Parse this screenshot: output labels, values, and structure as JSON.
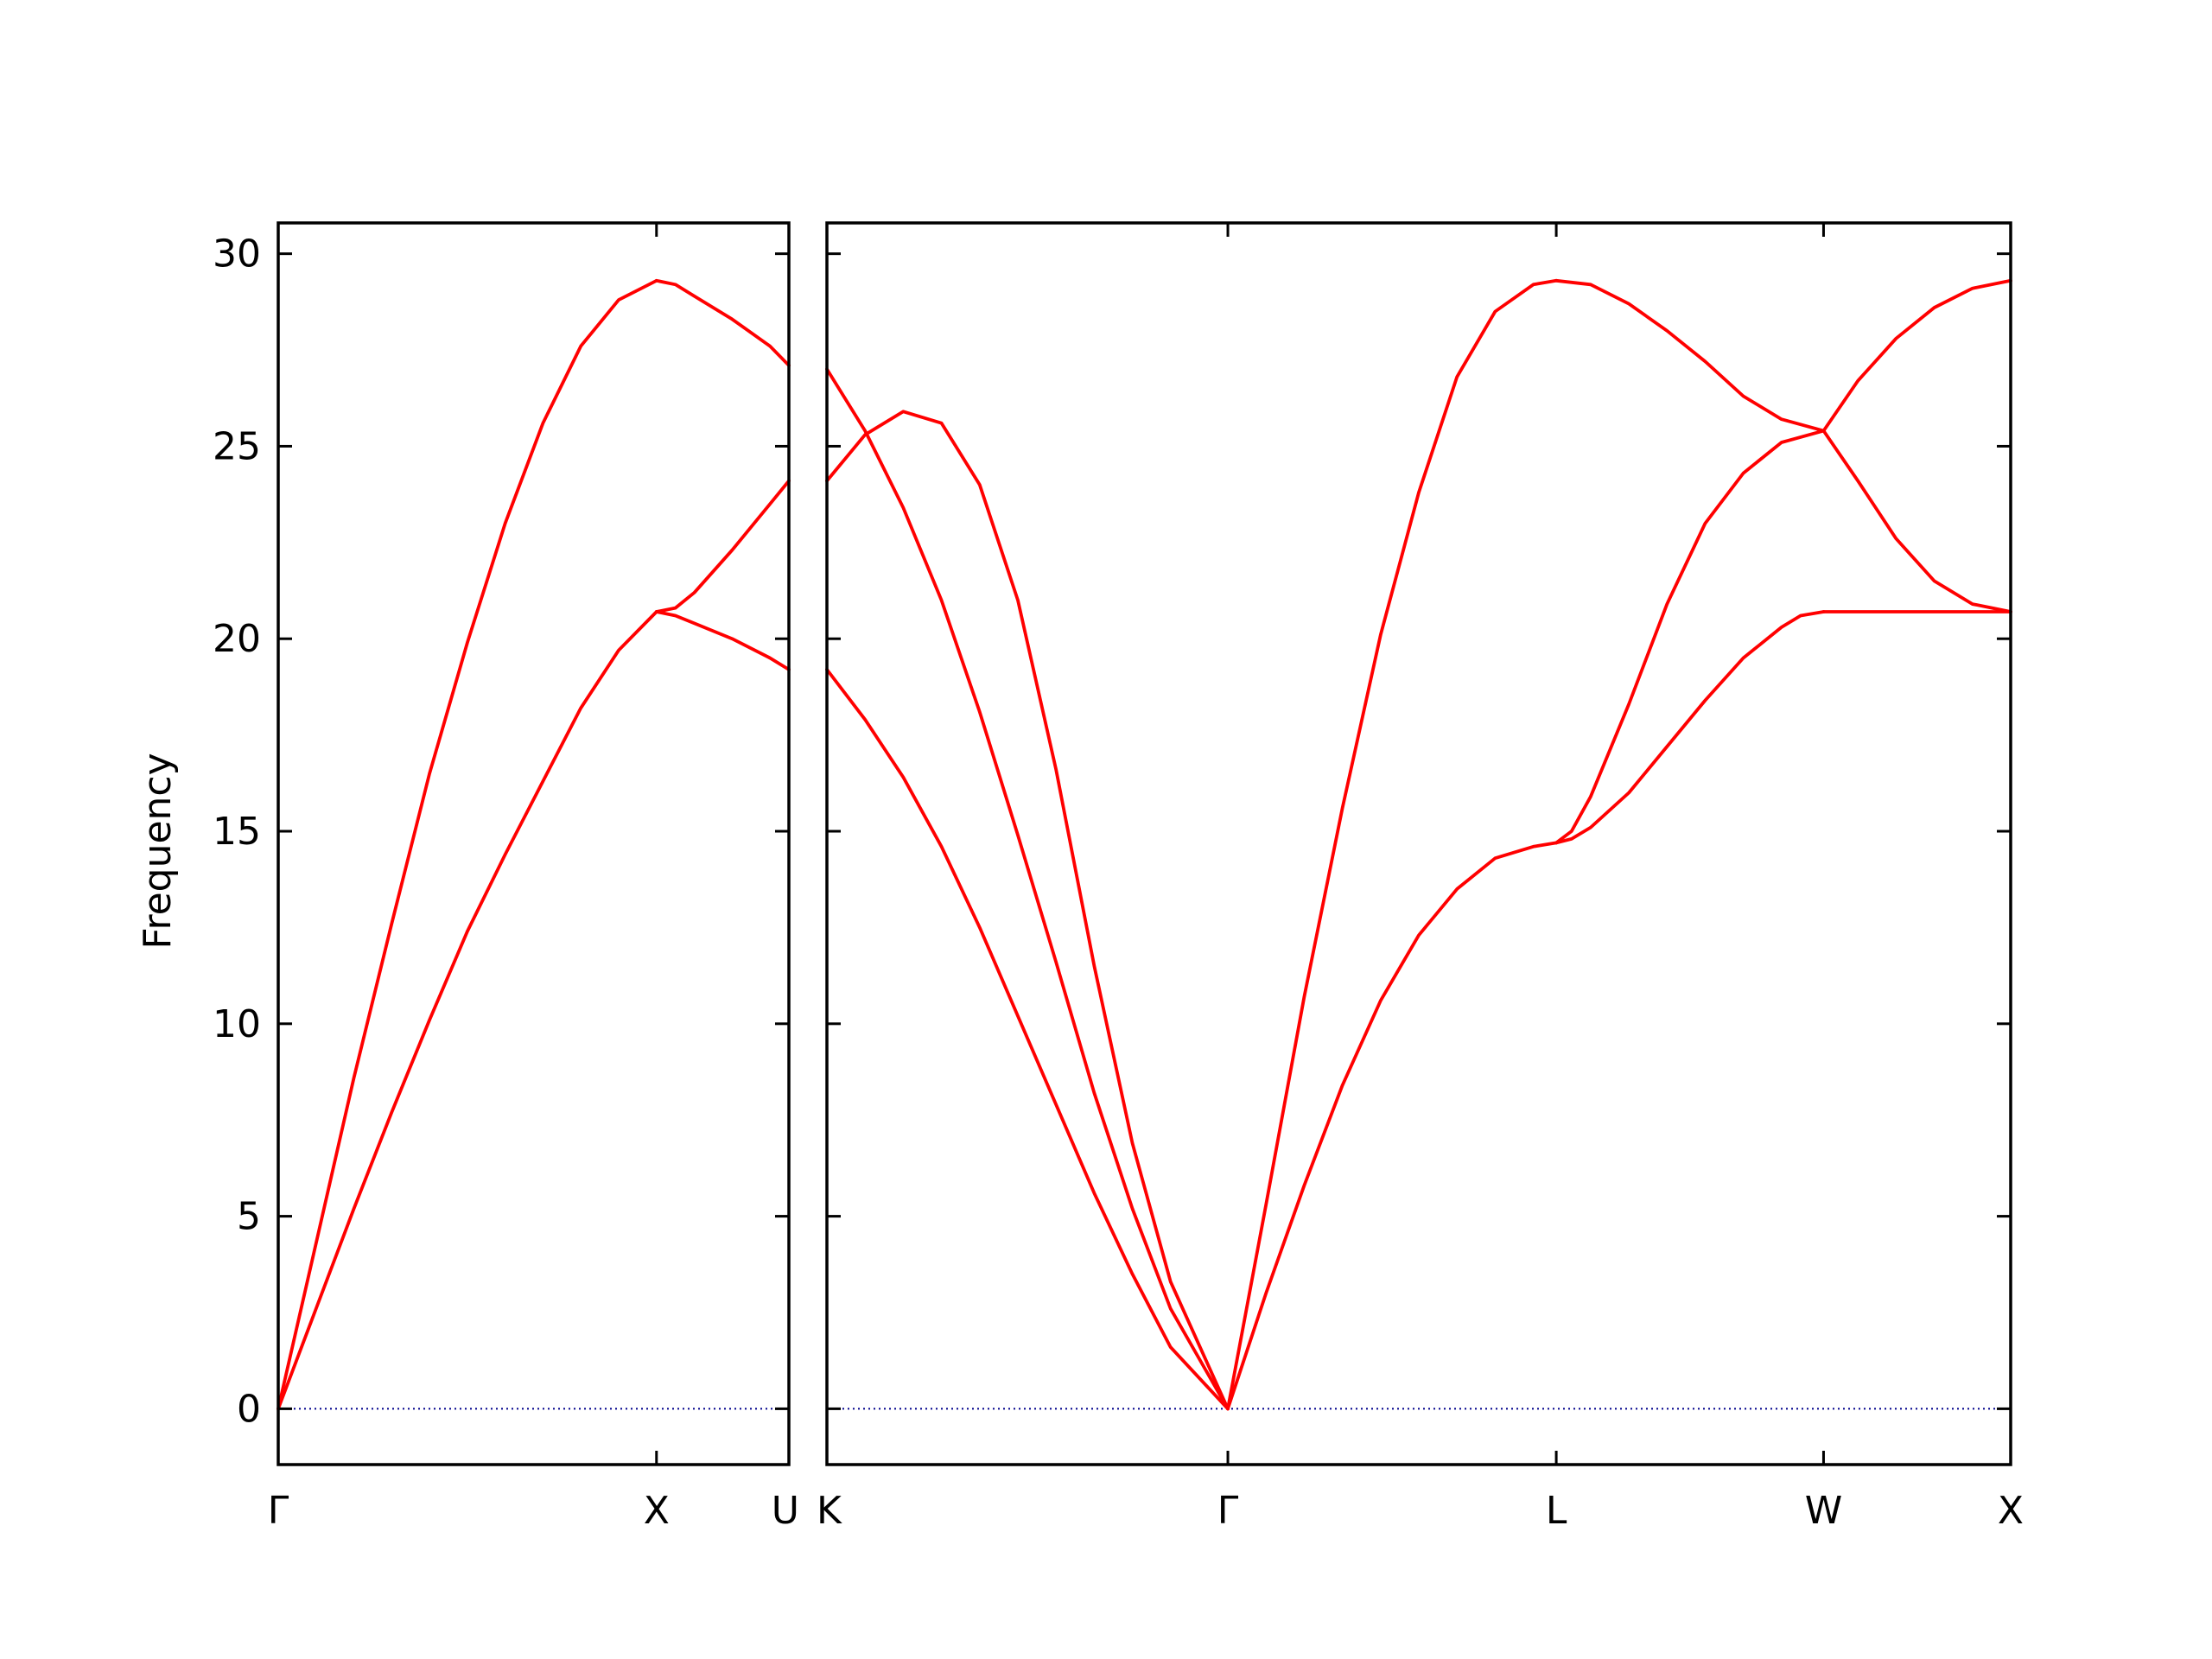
{
  "chart_data": {
    "type": "line",
    "ylabel": "Frequency",
    "ylim": [
      -1.45,
      30.8
    ],
    "yticks": [
      0,
      5,
      10,
      15,
      20,
      25,
      30
    ],
    "band_color": "#ff0000",
    "zero_line_color": "#00008b",
    "panels": [
      {
        "xlim": [
          0,
          1.35
        ],
        "ticks": [
          {
            "x": 0,
            "label": "Γ"
          },
          {
            "x": 1.0,
            "label": "X"
          },
          {
            "x": 1.35,
            "label": "U"
          }
        ],
        "series": [
          {
            "points": [
              [
                0,
                0
              ],
              [
                0.1,
                2.6
              ],
              [
                0.2,
                5.2
              ],
              [
                0.3,
                7.7
              ],
              [
                0.4,
                10.1
              ],
              [
                0.5,
                12.4
              ],
              [
                0.6,
                14.4
              ],
              [
                0.7,
                16.3
              ],
              [
                0.8,
                18.2
              ],
              [
                0.9,
                19.7
              ],
              [
                1.0,
                20.7
              ]
            ]
          },
          {
            "points": [
              [
                0,
                0
              ],
              [
                0.1,
                4.3
              ],
              [
                0.2,
                8.6
              ],
              [
                0.3,
                12.6
              ],
              [
                0.4,
                16.5
              ],
              [
                0.5,
                19.9
              ],
              [
                0.6,
                23.0
              ],
              [
                0.7,
                25.6
              ],
              [
                0.8,
                27.6
              ],
              [
                0.9,
                28.8
              ],
              [
                1.0,
                29.3
              ]
            ]
          },
          {
            "points": [
              [
                1.0,
                20.7
              ],
              [
                1.05,
                20.8
              ],
              [
                1.1,
                21.2
              ],
              [
                1.2,
                22.3
              ],
              [
                1.3,
                23.5
              ],
              [
                1.35,
                24.1
              ]
            ]
          },
          {
            "points": [
              [
                1.0,
                29.3
              ],
              [
                1.05,
                29.2
              ],
              [
                1.1,
                28.9
              ],
              [
                1.2,
                28.3
              ],
              [
                1.3,
                27.6
              ],
              [
                1.35,
                27.1
              ]
            ]
          },
          {
            "points": [
              [
                1.0,
                20.7
              ],
              [
                1.05,
                20.6
              ],
              [
                1.1,
                20.4
              ],
              [
                1.2,
                20.0
              ],
              [
                1.3,
                19.5
              ],
              [
                1.35,
                19.2
              ]
            ]
          }
        ]
      },
      {
        "xlim": [
          0,
          3.1
        ],
        "ticks": [
          {
            "x": 0,
            "label": "K"
          },
          {
            "x": 1.05,
            "label": "Γ"
          },
          {
            "x": 1.91,
            "label": "L"
          },
          {
            "x": 2.61,
            "label": "W"
          },
          {
            "x": 3.1,
            "label": "X"
          }
        ],
        "series": [
          {
            "points": [
              [
                0,
                19.2
              ],
              [
                0.1,
                17.9
              ],
              [
                0.2,
                16.4
              ],
              [
                0.3,
                14.6
              ],
              [
                0.4,
                12.5
              ],
              [
                0.5,
                10.2
              ],
              [
                0.6,
                7.9
              ],
              [
                0.7,
                5.6
              ],
              [
                0.8,
                3.5
              ],
              [
                0.9,
                1.6
              ],
              [
                1.05,
                0
              ]
            ]
          },
          {
            "points": [
              [
                0,
                27.0
              ],
              [
                0.1,
                25.4
              ],
              [
                0.2,
                23.4
              ],
              [
                0.3,
                21.0
              ],
              [
                0.4,
                18.1
              ],
              [
                0.5,
                14.9
              ],
              [
                0.6,
                11.6
              ],
              [
                0.7,
                8.2
              ],
              [
                0.8,
                5.2
              ],
              [
                0.9,
                2.6
              ],
              [
                1.05,
                0
              ]
            ]
          },
          {
            "points": [
              [
                0,
                24.1
              ],
              [
                0.1,
                25.3
              ],
              [
                0.2,
                25.9
              ],
              [
                0.3,
                25.6
              ],
              [
                0.4,
                24.0
              ],
              [
                0.5,
                21.0
              ],
              [
                0.6,
                16.6
              ],
              [
                0.7,
                11.5
              ],
              [
                0.8,
                6.9
              ],
              [
                0.9,
                3.3
              ],
              [
                1.05,
                0
              ]
            ]
          },
          {
            "points": [
              [
                1.05,
                0
              ],
              [
                1.15,
                3.0
              ],
              [
                1.25,
                5.8
              ],
              [
                1.35,
                8.4
              ],
              [
                1.45,
                10.6
              ],
              [
                1.55,
                12.3
              ],
              [
                1.65,
                13.5
              ],
              [
                1.75,
                14.3
              ],
              [
                1.85,
                14.6
              ],
              [
                1.91,
                14.7
              ]
            ]
          },
          {
            "points": [
              [
                1.05,
                0
              ],
              [
                1.15,
                5.3
              ],
              [
                1.25,
                10.7
              ],
              [
                1.35,
                15.6
              ],
              [
                1.45,
                20.1
              ],
              [
                1.55,
                23.8
              ],
              [
                1.65,
                26.8
              ],
              [
                1.75,
                28.5
              ],
              [
                1.85,
                29.2
              ],
              [
                1.91,
                29.3
              ]
            ]
          },
          {
            "points": [
              [
                1.91,
                14.7
              ],
              [
                1.95,
                14.8
              ],
              [
                2.0,
                15.1
              ],
              [
                2.1,
                16.0
              ],
              [
                2.2,
                17.2
              ],
              [
                2.3,
                18.4
              ],
              [
                2.4,
                19.5
              ],
              [
                2.5,
                20.3
              ],
              [
                2.55,
                20.6
              ],
              [
                2.61,
                20.7
              ]
            ]
          },
          {
            "points": [
              [
                1.91,
                14.7
              ],
              [
                1.95,
                15.0
              ],
              [
                2.0,
                15.9
              ],
              [
                2.1,
                18.3
              ],
              [
                2.2,
                20.9
              ],
              [
                2.3,
                23.0
              ],
              [
                2.4,
                24.3
              ],
              [
                2.5,
                25.1
              ],
              [
                2.61,
                25.4
              ]
            ]
          },
          {
            "points": [
              [
                1.91,
                29.3
              ],
              [
                2.0,
                29.2
              ],
              [
                2.1,
                28.7
              ],
              [
                2.2,
                28.0
              ],
              [
                2.3,
                27.2
              ],
              [
                2.4,
                26.3
              ],
              [
                2.5,
                25.7
              ],
              [
                2.61,
                25.4
              ]
            ]
          },
          {
            "points": [
              [
                2.61,
                25.4
              ],
              [
                2.7,
                24.1
              ],
              [
                2.8,
                22.6
              ],
              [
                2.9,
                21.5
              ],
              [
                3.0,
                20.9
              ],
              [
                3.1,
                20.7
              ]
            ]
          },
          {
            "points": [
              [
                2.61,
                25.4
              ],
              [
                2.7,
                26.7
              ],
              [
                2.8,
                27.8
              ],
              [
                2.9,
                28.6
              ],
              [
                3.0,
                29.1
              ],
              [
                3.1,
                29.3
              ]
            ]
          },
          {
            "points": [
              [
                2.61,
                20.7
              ],
              [
                3.1,
                20.7
              ]
            ]
          }
        ]
      }
    ]
  }
}
